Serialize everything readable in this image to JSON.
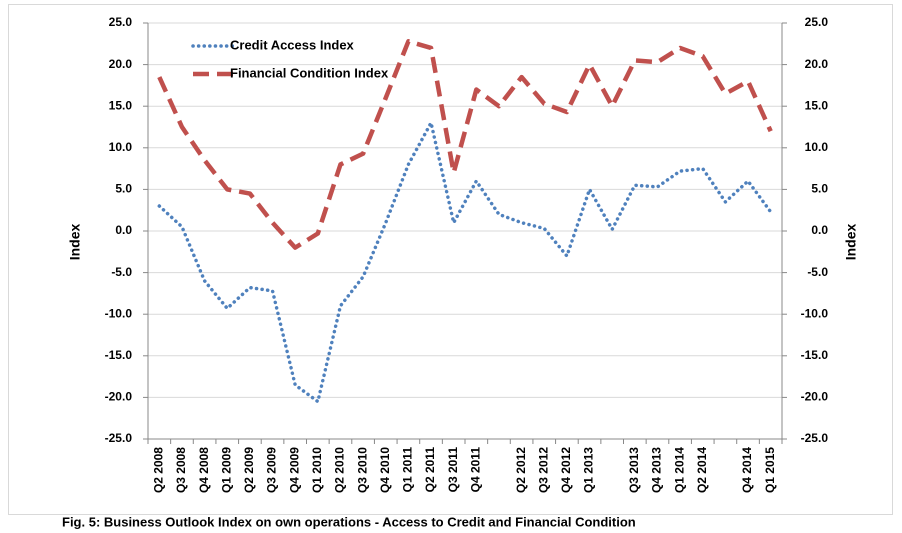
{
  "chart_data": {
    "type": "line",
    "y_label": "Index",
    "y2_label": "Index",
    "caption": "Fig. 5: Business Outlook Index on own operations - Access to Credit and Financial Condition",
    "categories": [
      "Q2 2008",
      "Q3 2008",
      "Q4 2008",
      "Q1 2009",
      "Q2 2009",
      "Q3 2009",
      "Q4 2009",
      "Q1 2010",
      "Q2 2010",
      "Q3 2010",
      "Q4 2010",
      "Q1 2011",
      "Q2 2011",
      "Q3 2011",
      "Q4 2011",
      null,
      "Q2 2012",
      "Q3 2012",
      "Q4 2012",
      "Q1 2013",
      null,
      "Q3 2013",
      "Q4 2013",
      "Q1 2014",
      "Q2 2014",
      null,
      "Q4 2014",
      "Q1 2015"
    ],
    "series": [
      {
        "name": "Credit Access Index",
        "color": "#4f81bd",
        "style": "dotted",
        "values": [
          3.0,
          0.5,
          -6.0,
          -9.3,
          -6.8,
          -7.2,
          -18.5,
          -20.5,
          -9.0,
          -5.5,
          1.0,
          8.0,
          13.0,
          1.0,
          6.0,
          2.0,
          1.0,
          0.3,
          -3.0,
          5.0,
          0.2,
          5.5,
          5.3,
          7.2,
          7.5,
          3.5,
          6.0,
          2.3
        ]
      },
      {
        "name": "Financial Condition Index",
        "color": "#c0504d",
        "style": "dashed",
        "values": [
          18.5,
          12.5,
          8.5,
          5.0,
          4.5,
          1.0,
          -2.0,
          -0.3,
          8.0,
          9.3,
          16.0,
          22.8,
          22.0,
          7.0,
          17.0,
          15.0,
          18.5,
          15.3,
          14.3,
          20.0,
          15.0,
          20.5,
          20.3,
          22.0,
          21.0,
          16.5,
          18.0,
          12.0
        ]
      }
    ],
    "ylim": [
      -25,
      25
    ],
    "yticks": [
      {
        "value": -25,
        "label": "-25.0"
      },
      {
        "value": -20,
        "label": "-20.0"
      },
      {
        "value": -15,
        "label": "-15.0"
      },
      {
        "value": -10,
        "label": "-10.0"
      },
      {
        "value": -5,
        "label": "-5.0"
      },
      {
        "value": 0,
        "label": "0.0"
      },
      {
        "value": 5,
        "label": "5.0"
      },
      {
        "value": 10,
        "label": "10.0"
      },
      {
        "value": 15,
        "label": "15.0"
      },
      {
        "value": 20,
        "label": "20.0"
      },
      {
        "value": 25,
        "label": "25.0"
      }
    ],
    "y2lim": [
      -25,
      25
    ],
    "y2ticks": [
      {
        "value": -25,
        "label": "-25.0"
      },
      {
        "value": -20,
        "label": "-20.0"
      },
      {
        "value": -15,
        "label": "-15.0"
      },
      {
        "value": -10,
        "label": "-10.0"
      },
      {
        "value": -5,
        "label": "-5.0"
      },
      {
        "value": 0,
        "label": "0.0"
      },
      {
        "value": 5,
        "label": "5.0"
      },
      {
        "value": 10,
        "label": "10.0"
      },
      {
        "value": 15,
        "label": "15.0"
      },
      {
        "value": 20,
        "label": "20.0"
      },
      {
        "value": 25,
        "label": "25.0"
      }
    ],
    "grid": true,
    "legend": "top-left"
  }
}
